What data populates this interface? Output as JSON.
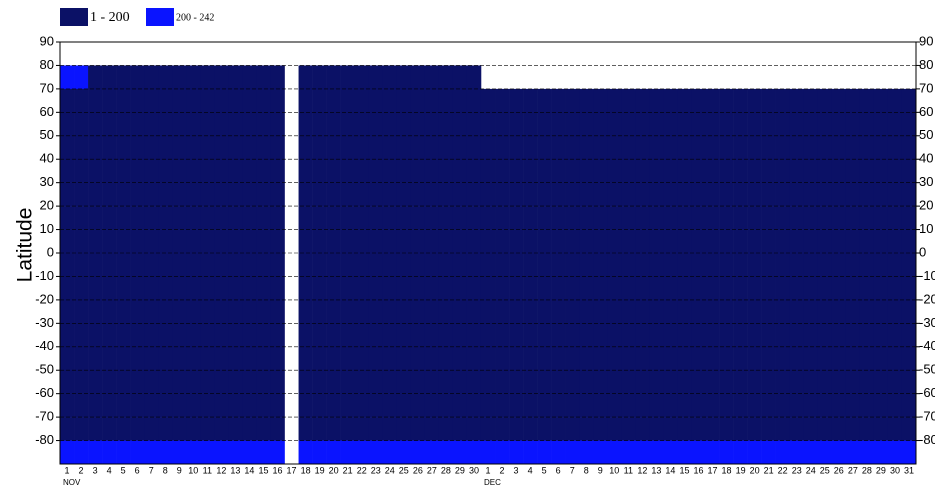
{
  "chart_data": {
    "type": "heatmap",
    "y_label": "Latitude",
    "legend": [
      {
        "label": "1 - 200",
        "min": 1,
        "max": 200,
        "color": "#0b1166"
      },
      {
        "label": "200 - 242",
        "min": 200,
        "max": 242,
        "color": "#0a14ff"
      }
    ],
    "ylim": [
      -90,
      90
    ],
    "yticks": [
      90,
      80,
      70,
      60,
      50,
      40,
      30,
      20,
      10,
      0,
      -10,
      -20,
      -30,
      -40,
      -50,
      -60,
      -70,
      -80
    ],
    "grid": true,
    "month_labels": [
      "NOV",
      "DEC"
    ],
    "categories": [
      "1",
      "2",
      "3",
      "4",
      "5",
      "6",
      "7",
      "8",
      "9",
      "10",
      "11",
      "12",
      "13",
      "14",
      "15",
      "16",
      "17",
      "18",
      "19",
      "20",
      "21",
      "22",
      "23",
      "24",
      "25",
      "26",
      "27",
      "28",
      "29",
      "30",
      "1",
      "2",
      "3",
      "4",
      "5",
      "6",
      "7",
      "8",
      "9",
      "10",
      "11",
      "12",
      "13",
      "14",
      "15",
      "16",
      "17",
      "18",
      "19",
      "20",
      "21",
      "22",
      "23",
      "24",
      "25",
      "26",
      "27",
      "28",
      "29",
      "30",
      "31"
    ],
    "category_colors": [
      "#000",
      "#000",
      "#000",
      "#000",
      "#000",
      "#000",
      "#e00",
      "#000",
      "#000",
      "#000",
      "#000",
      "#000",
      "#000",
      "#e00",
      "#000",
      "#000",
      "#000",
      "#000",
      "#000",
      "#000",
      "#e00",
      "#000",
      "#000",
      "#000",
      "#000",
      "#000",
      "#000",
      "#e00",
      "#000",
      "#000",
      "#000",
      "#000",
      "#000",
      "#000",
      "#e00",
      "#000",
      "#000",
      "#000",
      "#000",
      "#000",
      "#000",
      "#e00",
      "#000",
      "#000",
      "#000",
      "#000",
      "#000",
      "#000",
      "#e00",
      "#000",
      "#000",
      "#000",
      "#000",
      "#000",
      "#000",
      "#e00",
      "#000",
      "#000",
      "#000",
      "#000",
      "#000"
    ],
    "z": [
      [
        null,
        210,
        100,
        100,
        100,
        100,
        100,
        100,
        100,
        100,
        100,
        100,
        100,
        100,
        100,
        100,
        100,
        210
      ],
      [
        null,
        210,
        100,
        100,
        100,
        100,
        100,
        100,
        100,
        100,
        100,
        100,
        100,
        100,
        100,
        100,
        100,
        210
      ],
      [
        null,
        150,
        100,
        100,
        100,
        100,
        100,
        100,
        100,
        100,
        100,
        100,
        100,
        100,
        100,
        100,
        100,
        210
      ],
      [
        null,
        150,
        100,
        100,
        100,
        100,
        100,
        100,
        100,
        100,
        100,
        100,
        100,
        100,
        100,
        100,
        100,
        210
      ],
      [
        null,
        150,
        100,
        100,
        100,
        100,
        100,
        100,
        100,
        100,
        100,
        100,
        100,
        100,
        100,
        100,
        100,
        210
      ],
      [
        null,
        150,
        100,
        100,
        100,
        100,
        100,
        100,
        100,
        100,
        100,
        100,
        100,
        100,
        100,
        100,
        100,
        210
      ],
      [
        null,
        150,
        100,
        100,
        100,
        100,
        100,
        100,
        100,
        100,
        100,
        100,
        100,
        100,
        100,
        100,
        100,
        210
      ],
      [
        null,
        150,
        100,
        100,
        100,
        100,
        100,
        100,
        100,
        100,
        100,
        100,
        100,
        100,
        100,
        100,
        100,
        210
      ],
      [
        null,
        150,
        100,
        100,
        100,
        100,
        100,
        100,
        100,
        100,
        100,
        100,
        100,
        100,
        100,
        100,
        100,
        210
      ],
      [
        null,
        150,
        100,
        100,
        100,
        100,
        100,
        100,
        100,
        100,
        100,
        100,
        100,
        100,
        100,
        100,
        100,
        210
      ],
      [
        null,
        150,
        100,
        100,
        100,
        100,
        100,
        100,
        100,
        100,
        100,
        100,
        100,
        100,
        100,
        100,
        100,
        210
      ],
      [
        null,
        150,
        100,
        100,
        100,
        100,
        100,
        100,
        100,
        100,
        100,
        100,
        100,
        100,
        100,
        100,
        100,
        210
      ],
      [
        null,
        150,
        100,
        100,
        100,
        100,
        100,
        100,
        100,
        100,
        100,
        100,
        100,
        100,
        100,
        100,
        100,
        210
      ],
      [
        null,
        150,
        100,
        100,
        100,
        100,
        100,
        100,
        100,
        100,
        100,
        100,
        100,
        100,
        100,
        100,
        100,
        210
      ],
      [
        null,
        150,
        100,
        100,
        100,
        100,
        100,
        100,
        100,
        100,
        100,
        100,
        100,
        100,
        100,
        100,
        100,
        210
      ],
      [
        null,
        150,
        100,
        100,
        100,
        100,
        100,
        100,
        100,
        100,
        100,
        100,
        100,
        100,
        100,
        100,
        100,
        210
      ],
      [
        null,
        null,
        null,
        null,
        null,
        null,
        null,
        null,
        null,
        null,
        null,
        null,
        null,
        null,
        null,
        null,
        null,
        null
      ],
      [
        null,
        150,
        100,
        100,
        100,
        100,
        100,
        100,
        100,
        100,
        100,
        100,
        100,
        100,
        100,
        100,
        100,
        210
      ],
      [
        null,
        150,
        100,
        100,
        100,
        100,
        100,
        100,
        100,
        100,
        100,
        100,
        100,
        100,
        100,
        100,
        100,
        210
      ],
      [
        null,
        150,
        100,
        100,
        100,
        100,
        100,
        100,
        100,
        100,
        100,
        100,
        100,
        100,
        100,
        100,
        100,
        210
      ],
      [
        null,
        150,
        100,
        100,
        100,
        100,
        100,
        100,
        100,
        100,
        100,
        100,
        100,
        100,
        100,
        100,
        100,
        210
      ],
      [
        null,
        150,
        100,
        100,
        100,
        100,
        100,
        100,
        100,
        100,
        100,
        100,
        100,
        100,
        100,
        100,
        100,
        210
      ],
      [
        null,
        150,
        100,
        100,
        100,
        100,
        100,
        100,
        100,
        100,
        100,
        100,
        100,
        100,
        100,
        100,
        100,
        210
      ],
      [
        null,
        150,
        100,
        100,
        100,
        100,
        100,
        100,
        100,
        100,
        100,
        100,
        100,
        100,
        100,
        100,
        100,
        210
      ],
      [
        null,
        150,
        100,
        100,
        100,
        100,
        100,
        100,
        100,
        100,
        100,
        100,
        100,
        100,
        100,
        100,
        100,
        210
      ],
      [
        null,
        150,
        100,
        100,
        100,
        100,
        100,
        100,
        100,
        100,
        100,
        100,
        100,
        100,
        100,
        100,
        100,
        210
      ],
      [
        null,
        150,
        100,
        100,
        100,
        100,
        100,
        100,
        100,
        100,
        100,
        100,
        100,
        100,
        100,
        100,
        100,
        210
      ],
      [
        null,
        150,
        100,
        100,
        100,
        100,
        100,
        100,
        100,
        100,
        100,
        100,
        100,
        100,
        100,
        100,
        100,
        210
      ],
      [
        null,
        150,
        100,
        100,
        100,
        100,
        100,
        100,
        100,
        100,
        100,
        100,
        100,
        100,
        100,
        100,
        100,
        210
      ],
      [
        null,
        150,
        100,
        100,
        100,
        100,
        100,
        100,
        100,
        100,
        100,
        100,
        100,
        100,
        100,
        100,
        100,
        210
      ],
      [
        null,
        null,
        100,
        100,
        100,
        100,
        100,
        100,
        100,
        100,
        100,
        100,
        100,
        100,
        100,
        100,
        100,
        210
      ],
      [
        null,
        null,
        100,
        100,
        100,
        100,
        100,
        100,
        100,
        100,
        100,
        100,
        100,
        100,
        100,
        100,
        100,
        210
      ],
      [
        null,
        null,
        100,
        100,
        100,
        100,
        100,
        100,
        100,
        100,
        100,
        100,
        100,
        100,
        100,
        100,
        100,
        210
      ],
      [
        null,
        null,
        100,
        100,
        100,
        100,
        100,
        100,
        100,
        100,
        100,
        100,
        100,
        100,
        100,
        100,
        100,
        210
      ],
      [
        null,
        null,
        100,
        100,
        100,
        100,
        100,
        100,
        100,
        100,
        100,
        100,
        100,
        100,
        100,
        100,
        100,
        210
      ],
      [
        null,
        null,
        100,
        100,
        100,
        100,
        100,
        100,
        100,
        100,
        100,
        100,
        100,
        100,
        100,
        100,
        100,
        210
      ],
      [
        null,
        null,
        100,
        100,
        100,
        100,
        100,
        100,
        100,
        100,
        100,
        100,
        100,
        100,
        100,
        100,
        100,
        210
      ],
      [
        null,
        null,
        100,
        100,
        100,
        100,
        100,
        100,
        100,
        100,
        100,
        100,
        100,
        100,
        100,
        100,
        100,
        210
      ],
      [
        null,
        null,
        100,
        100,
        100,
        100,
        100,
        100,
        100,
        100,
        100,
        100,
        100,
        100,
        100,
        100,
        100,
        210
      ],
      [
        null,
        null,
        100,
        100,
        100,
        100,
        100,
        100,
        100,
        100,
        100,
        100,
        100,
        100,
        100,
        100,
        100,
        210
      ],
      [
        null,
        null,
        100,
        100,
        100,
        100,
        100,
        100,
        100,
        100,
        100,
        100,
        100,
        100,
        100,
        100,
        100,
        210
      ],
      [
        null,
        null,
        100,
        100,
        100,
        100,
        100,
        100,
        100,
        100,
        100,
        100,
        100,
        100,
        100,
        100,
        100,
        210
      ],
      [
        null,
        null,
        100,
        100,
        100,
        100,
        100,
        100,
        100,
        100,
        100,
        100,
        100,
        100,
        100,
        100,
        100,
        210
      ],
      [
        null,
        null,
        100,
        100,
        100,
        100,
        100,
        100,
        100,
        100,
        100,
        100,
        100,
        100,
        100,
        100,
        100,
        210
      ],
      [
        null,
        null,
        100,
        100,
        100,
        100,
        100,
        100,
        100,
        100,
        100,
        100,
        100,
        100,
        100,
        100,
        100,
        210
      ],
      [
        null,
        null,
        100,
        100,
        100,
        100,
        100,
        100,
        100,
        100,
        100,
        100,
        100,
        100,
        100,
        100,
        100,
        210
      ],
      [
        null,
        null,
        100,
        100,
        100,
        100,
        100,
        100,
        100,
        100,
        100,
        100,
        100,
        100,
        100,
        100,
        100,
        210
      ],
      [
        null,
        null,
        100,
        100,
        100,
        100,
        100,
        100,
        100,
        100,
        100,
        100,
        100,
        100,
        100,
        100,
        100,
        210
      ],
      [
        null,
        null,
        100,
        100,
        100,
        100,
        100,
        100,
        100,
        100,
        100,
        100,
        100,
        100,
        100,
        100,
        100,
        210
      ],
      [
        null,
        null,
        100,
        100,
        100,
        100,
        100,
        100,
        100,
        100,
        100,
        100,
        100,
        100,
        100,
        100,
        100,
        210
      ],
      [
        null,
        null,
        100,
        100,
        100,
        100,
        100,
        100,
        100,
        100,
        100,
        100,
        100,
        100,
        100,
        100,
        100,
        210
      ],
      [
        null,
        null,
        100,
        100,
        100,
        100,
        100,
        100,
        100,
        100,
        100,
        100,
        100,
        100,
        100,
        100,
        100,
        210
      ],
      [
        null,
        null,
        100,
        100,
        100,
        100,
        100,
        100,
        100,
        100,
        100,
        100,
        100,
        100,
        100,
        100,
        100,
        210
      ],
      [
        null,
        null,
        100,
        100,
        100,
        100,
        100,
        100,
        100,
        100,
        100,
        100,
        100,
        100,
        100,
        100,
        100,
        210
      ],
      [
        null,
        null,
        100,
        100,
        100,
        100,
        100,
        100,
        100,
        100,
        100,
        100,
        100,
        100,
        100,
        100,
        100,
        210
      ],
      [
        null,
        null,
        100,
        100,
        100,
        100,
        100,
        100,
        100,
        100,
        100,
        100,
        100,
        100,
        100,
        100,
        100,
        210
      ],
      [
        null,
        null,
        100,
        100,
        100,
        100,
        100,
        100,
        100,
        100,
        100,
        100,
        100,
        100,
        100,
        100,
        100,
        210
      ],
      [
        null,
        null,
        100,
        100,
        100,
        100,
        100,
        100,
        100,
        100,
        100,
        100,
        100,
        100,
        100,
        100,
        100,
        210
      ],
      [
        null,
        null,
        100,
        100,
        100,
        100,
        100,
        100,
        100,
        100,
        100,
        100,
        100,
        100,
        100,
        100,
        100,
        210
      ],
      [
        null,
        null,
        100,
        100,
        100,
        100,
        100,
        100,
        100,
        100,
        100,
        100,
        100,
        100,
        100,
        100,
        100,
        210
      ],
      [
        null,
        null,
        100,
        100,
        100,
        100,
        100,
        100,
        100,
        100,
        100,
        100,
        100,
        100,
        100,
        100,
        100,
        210
      ]
    ]
  }
}
